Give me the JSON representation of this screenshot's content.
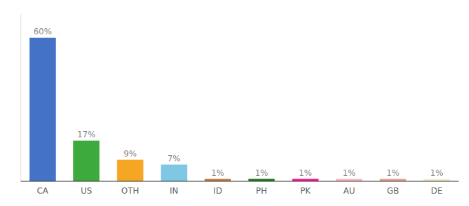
{
  "chart_data": {
    "type": "bar",
    "categories": [
      "CA",
      "US",
      "OTH",
      "IN",
      "ID",
      "PH",
      "PK",
      "AU",
      "GB",
      "DE"
    ],
    "values": [
      60,
      17,
      9,
      7,
      1,
      1,
      1,
      1,
      1,
      1
    ],
    "value_labels": [
      "60%",
      "17%",
      "9%",
      "7%",
      "1%",
      "1%",
      "1%",
      "1%",
      "1%",
      "1%"
    ],
    "colors": [
      "#4472C4",
      "#3DAA3D",
      "#F5A623",
      "#7EC8E3",
      "#C87941",
      "#217A21",
      "#FF1493",
      "#FFB6C1",
      "#E8A090",
      "#F0EDD0"
    ],
    "ylim": [
      0,
      70
    ],
    "data_labels": true,
    "tick_labels": "x",
    "grid": false
  }
}
